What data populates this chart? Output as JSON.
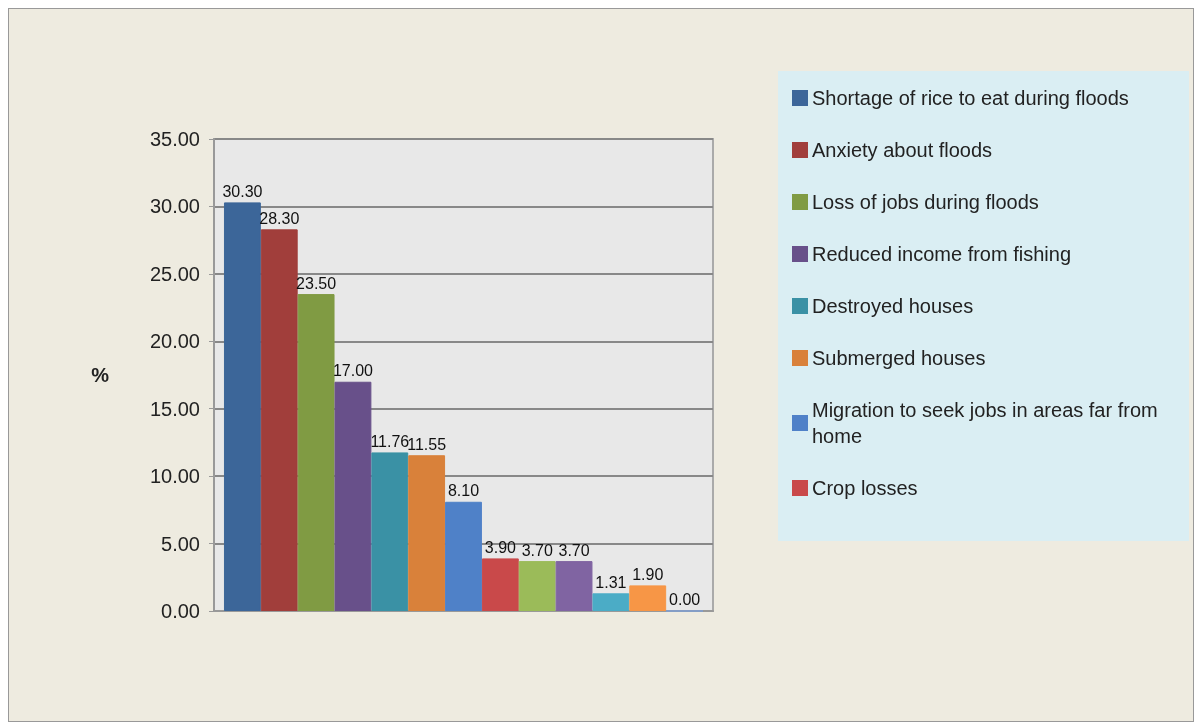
{
  "chart_data": {
    "type": "bar",
    "ylabel": "%",
    "categories": [
      null
    ],
    "series": [
      {
        "name": "Shortage of rice to eat during floods",
        "color": "#3c6699",
        "values": [
          30.3
        ],
        "value_labels": [
          "30.30"
        ]
      },
      {
        "name": "Anxiety about floods",
        "color": "#a13e3b",
        "values": [
          28.3
        ],
        "value_labels": [
          "28.30"
        ]
      },
      {
        "name": "Loss of jobs during floods",
        "color": "#809b43",
        "values": [
          23.5
        ],
        "value_labels": [
          "23.50"
        ]
      },
      {
        "name": "Reduced income from fishing",
        "color": "#68508a",
        "values": [
          17.0
        ],
        "value_labels": [
          "17.00"
        ]
      },
      {
        "name": "Destroyed houses",
        "color": "#3a91a5",
        "values": [
          11.76
        ],
        "value_labels": [
          "11.76"
        ]
      },
      {
        "name": "Submerged houses",
        "color": "#d9813a",
        "values": [
          11.55
        ],
        "value_labels": [
          "11.55"
        ]
      },
      {
        "name": "Migration to seek jobs in areas far from home",
        "color": "#4f81c8",
        "values": [
          8.1
        ],
        "value_labels": [
          "8.10"
        ]
      },
      {
        "name": "Crop losses",
        "color": "#c9494a",
        "values": [
          3.9
        ],
        "value_labels": [
          "3.90"
        ]
      },
      {
        "color": "#9bbb59",
        "values": [
          3.7
        ],
        "value_labels": [
          "3.70"
        ]
      },
      {
        "color": "#8064a2",
        "values": [
          3.7
        ],
        "value_labels": [
          "3.70"
        ]
      },
      {
        "color": "#4bacc6",
        "values": [
          1.31
        ],
        "value_labels": [
          "1.31"
        ]
      },
      {
        "color": "#f79646",
        "values": [
          1.9
        ],
        "value_labels": [
          "1.90"
        ]
      },
      {
        "color": "#7f9fd5",
        "values": [
          0.0
        ],
        "value_labels": [
          "0.00"
        ]
      }
    ],
    "ylim": [
      0,
      35
    ],
    "yticks": [
      {
        "value": 0,
        "label": "0.00"
      },
      {
        "value": 5,
        "label": "5.00"
      },
      {
        "value": 10,
        "label": "10.00"
      },
      {
        "value": 15,
        "label": "15.00"
      },
      {
        "value": 20,
        "label": "20.00"
      },
      {
        "value": 25,
        "label": "25.00"
      },
      {
        "value": 30,
        "label": "30.00"
      },
      {
        "value": 35,
        "label": "35.00"
      }
    ],
    "grid": true,
    "legend": "right"
  }
}
